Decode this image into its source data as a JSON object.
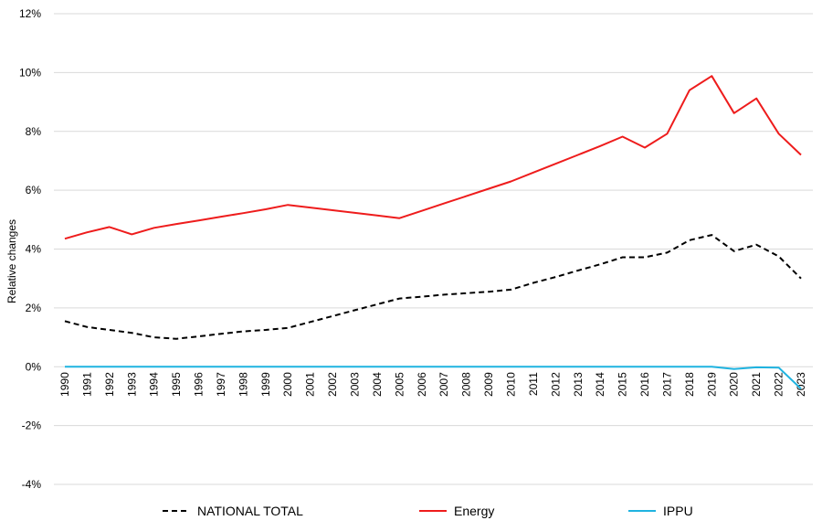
{
  "chart_data": {
    "type": "line",
    "title": "",
    "xlabel": "",
    "ylabel": "Relative changes",
    "ylim": [
      -4,
      12
    ],
    "yticks": [
      -4,
      -2,
      0,
      2,
      4,
      6,
      8,
      10,
      12
    ],
    "ytick_labels": [
      "-4%",
      "-2%",
      "0%",
      "2%",
      "4%",
      "6%",
      "8%",
      "10%",
      "12%"
    ],
    "grid": "horizontal",
    "legend_position": "bottom",
    "x": [
      "1990",
      "1991",
      "1992",
      "1993",
      "1994",
      "1995",
      "1996",
      "1997",
      "1998",
      "1999",
      "2000",
      "2001",
      "2002",
      "2003",
      "2004",
      "2005",
      "2006",
      "2007",
      "2008",
      "2009",
      "2010",
      "2011",
      "2012",
      "2013",
      "2014",
      "2015",
      "2016",
      "2017",
      "2018",
      "2019",
      "2020",
      "2021",
      "2022",
      "2023"
    ],
    "series": [
      {
        "name": "NATIONAL TOTAL",
        "color": "#000000",
        "style": "dashed",
        "values": [
          1.55,
          1.35,
          1.25,
          1.15,
          1.0,
          0.95,
          1.03,
          1.12,
          1.2,
          1.25,
          1.32,
          1.52,
          1.72,
          1.92,
          2.12,
          2.32,
          2.38,
          2.45,
          2.5,
          2.55,
          2.62,
          2.85,
          3.05,
          3.27,
          3.48,
          3.72,
          3.72,
          3.88,
          4.3,
          4.48,
          3.93,
          4.15,
          3.75,
          3.0
        ]
      },
      {
        "name": "Energy",
        "color": "#ee1c1c",
        "style": "solid",
        "values": [
          4.35,
          4.57,
          4.75,
          4.5,
          4.72,
          4.85,
          4.97,
          5.1,
          5.22,
          5.35,
          5.5,
          5.41,
          5.32,
          5.23,
          5.14,
          5.05,
          5.3,
          5.55,
          5.8,
          6.05,
          6.3,
          6.6,
          6.9,
          7.2,
          7.5,
          7.82,
          7.45,
          7.92,
          9.4,
          9.88,
          8.62,
          9.12,
          7.92,
          7.2
        ]
      },
      {
        "name": "IPPU",
        "color": "#1fb3e0",
        "style": "solid",
        "values": [
          0,
          0,
          0,
          0,
          0,
          0,
          0,
          0,
          0,
          0,
          0,
          0,
          0,
          0,
          0,
          0,
          0,
          0,
          0,
          0,
          0,
          0,
          0,
          0,
          0,
          0,
          0,
          0,
          0,
          0,
          -0.08,
          -0.02,
          -0.03,
          -0.75
        ]
      }
    ]
  }
}
